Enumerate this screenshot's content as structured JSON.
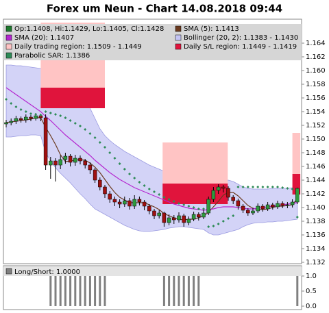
{
  "chart_data": [
    {
      "type": "candlestick",
      "title": "Forex um Neun - Chart 14.08.2018 09:44",
      "ylim": [
        1.1318,
        1.1675
      ],
      "yticks": [
        1.132,
        1.134,
        1.136,
        1.138,
        {
          "value": 1.14,
          "label": "1.140"
        },
        1.142,
        1.144,
        1.146,
        1.148,
        {
          "value": 1.15,
          "label": "1.150"
        },
        1.152,
        1.154,
        1.156,
        1.158,
        {
          "value": 1.16,
          "label": "1.160"
        },
        1.162,
        1.164
      ],
      "candles": {
        "name": "Op:1.1408, Hi:1.1429, Lo:1.1405, Cl:1.1428",
        "color": "#1e7a2e",
        "color_up": "#2e9a3e",
        "color_down": "#a01010",
        "open": [
          1.1522,
          1.1524,
          1.1526,
          1.153,
          1.1528,
          1.1532,
          1.153,
          1.1534,
          1.1531,
          1.1462,
          1.1468,
          1.1462,
          1.147,
          1.1475,
          1.1466,
          1.1472,
          1.1468,
          1.1462,
          1.1455,
          1.144,
          1.143,
          1.142,
          1.1412,
          1.1408,
          1.1405,
          1.141,
          1.1402,
          1.1412,
          1.1408,
          1.1402,
          1.1395,
          1.1388,
          1.1392,
          1.1378,
          1.1385,
          1.1382,
          1.1388,
          1.1378,
          1.1383,
          1.139,
          1.1386,
          1.1392,
          1.1412,
          1.1425,
          1.143,
          1.1428,
          1.1415,
          1.141,
          1.1402,
          1.1396,
          1.1392,
          1.1395,
          1.1402,
          1.1398,
          1.1404,
          1.1401,
          1.1406,
          1.1403,
          1.1404,
          1.1408
        ],
        "high": [
          1.1528,
          1.153,
          1.1534,
          1.1533,
          1.1536,
          1.1535,
          1.1538,
          1.1537,
          1.1536,
          1.1474,
          1.1472,
          1.1476,
          1.148,
          1.1478,
          1.1477,
          1.1476,
          1.1471,
          1.1466,
          1.1458,
          1.1444,
          1.1433,
          1.1424,
          1.1416,
          1.1412,
          1.1416,
          1.1414,
          1.1418,
          1.1416,
          1.1411,
          1.1405,
          1.1398,
          1.1396,
          1.1394,
          1.139,
          1.1389,
          1.1393,
          1.1391,
          1.1387,
          1.1394,
          1.1393,
          1.1397,
          1.1416,
          1.143,
          1.1434,
          1.1433,
          1.1431,
          1.1418,
          1.1413,
          1.1405,
          1.1399,
          1.1399,
          1.1406,
          1.1405,
          1.1408,
          1.1407,
          1.141,
          1.1409,
          1.1408,
          1.1412,
          1.1429
        ],
        "low": [
          1.1517,
          1.152,
          1.1522,
          1.1524,
          1.1524,
          1.1526,
          1.1527,
          1.1526,
          1.1455,
          1.1442,
          1.1438,
          1.1456,
          1.1464,
          1.146,
          1.1461,
          1.1463,
          1.1457,
          1.1449,
          1.1436,
          1.1425,
          1.1414,
          1.1407,
          1.1402,
          1.1399,
          1.1401,
          1.1397,
          1.1398,
          1.1403,
          1.1396,
          1.139,
          1.1383,
          1.1384,
          1.1372,
          1.1374,
          1.1376,
          1.1378,
          1.1372,
          1.1374,
          1.138,
          1.1381,
          1.1383,
          1.1389,
          1.1408,
          1.142,
          1.1422,
          1.141,
          1.1405,
          1.1397,
          1.1392,
          1.1388,
          1.1389,
          1.1392,
          1.1394,
          1.1395,
          1.1397,
          1.1398,
          1.1399,
          1.1399,
          1.14,
          1.1405
        ],
        "close": [
          1.1524,
          1.1526,
          1.153,
          1.1528,
          1.1532,
          1.153,
          1.1534,
          1.1531,
          1.1462,
          1.1468,
          1.1462,
          1.147,
          1.1475,
          1.1466,
          1.1472,
          1.1468,
          1.1462,
          1.1455,
          1.144,
          1.143,
          1.142,
          1.1412,
          1.1408,
          1.1405,
          1.141,
          1.1402,
          1.1412,
          1.1408,
          1.1402,
          1.1395,
          1.1388,
          1.1392,
          1.1378,
          1.1385,
          1.1382,
          1.1388,
          1.1378,
          1.1383,
          1.139,
          1.1386,
          1.1392,
          1.1412,
          1.1425,
          1.143,
          1.1428,
          1.1415,
          1.141,
          1.1402,
          1.1396,
          1.1392,
          1.1395,
          1.1402,
          1.1398,
          1.1404,
          1.1401,
          1.1406,
          1.1403,
          1.1404,
          1.1408,
          1.1428
        ]
      },
      "bands": [
        {
          "name": "Bollinger (20, 2): 1.1383 - 1.1430",
          "color": "#c4c4f4",
          "upper": [
            1.1608,
            1.1608,
            1.1607,
            1.1607,
            1.1606,
            1.1605,
            1.1604,
            1.1603,
            1.1605,
            1.1604,
            1.16,
            1.1595,
            1.1588,
            1.1582,
            1.1576,
            1.1568,
            1.1558,
            1.1545,
            1.153,
            1.1515,
            1.1505,
            1.1498,
            1.1492,
            1.1487,
            1.1482,
            1.1478,
            1.1474,
            1.147,
            1.1466,
            1.1462,
            1.1459,
            1.1456,
            1.1453,
            1.145,
            1.1447,
            1.1445,
            1.1443,
            1.1441,
            1.144,
            1.1438,
            1.1436,
            1.1435,
            1.1437,
            1.1439,
            1.144,
            1.144,
            1.1438,
            1.1434,
            1.143,
            1.1428,
            1.1427,
            1.1427,
            1.1427,
            1.1427,
            1.1428,
            1.1428,
            1.1428,
            1.1428,
            1.1429,
            1.143
          ],
          "lower": [
            1.1503,
            1.1503,
            1.1504,
            1.1505,
            1.1505,
            1.1506,
            1.1506,
            1.1505,
            1.148,
            1.1468,
            1.1458,
            1.145,
            1.1443,
            1.1436,
            1.1428,
            1.142,
            1.1413,
            1.1405,
            1.1398,
            1.1394,
            1.139,
            1.1386,
            1.1382,
            1.1378,
            1.1374,
            1.1371,
            1.1368,
            1.1366,
            1.1365,
            1.1365,
            1.1366,
            1.1367,
            1.1368,
            1.137,
            1.1371,
            1.1372,
            1.1372,
            1.1371,
            1.137,
            1.1369,
            1.1368,
            1.1363,
            1.136,
            1.136,
            1.1362,
            1.1364,
            1.1366,
            1.1368,
            1.1372,
            1.1375,
            1.1377,
            1.1378,
            1.1378,
            1.1379,
            1.1379,
            1.138,
            1.138,
            1.1381,
            1.1382,
            1.1383
          ]
        }
      ],
      "regions": [
        {
          "name": "Daily trading region: 1.1509 - 1.1449",
          "color": "#ffc4c4",
          "blocks": [
            {
              "from": 7,
              "to": 20,
              "high": 1.167,
              "low": 1.1575
            },
            {
              "from": 31.7,
              "to": 44.9,
              "high": 1.1495,
              "low": 1.1435
            },
            {
              "from": 58,
              "to": 59.6,
              "high": 1.1509,
              "low": 1.1449
            }
          ]
        },
        {
          "name": "Daily S/L region: 1.1449 - 1.1419",
          "color": "#e0143c",
          "blocks": [
            {
              "from": 7,
              "to": 20,
              "high": 1.1575,
              "low": 1.1545
            },
            {
              "from": 31.7,
              "to": 44.9,
              "high": 1.1435,
              "low": 1.1405
            },
            {
              "from": 58,
              "to": 59.6,
              "high": 1.1449,
              "low": 1.1419
            }
          ]
        }
      ],
      "series": [
        {
          "name": "SMA (5): 1.1413",
          "color": "#6b3a1e",
          "style": "line",
          "values": [
            1.1524,
            1.1525,
            1.1526,
            1.1527,
            1.1528,
            1.1529,
            1.1531,
            1.1531,
            1.1517,
            1.1505,
            1.1492,
            1.1477,
            1.1467,
            1.1468,
            1.1469,
            1.147,
            1.1469,
            1.1465,
            1.1459,
            1.1451,
            1.1441,
            1.1431,
            1.1422,
            1.1415,
            1.1411,
            1.1407,
            1.1407,
            1.1407,
            1.1407,
            1.1404,
            1.1401,
            1.1397,
            1.1391,
            1.1388,
            1.1385,
            1.1383,
            1.1382,
            1.1383,
            1.1383,
            1.1385,
            1.1388,
            1.1393,
            1.1401,
            1.1409,
            1.1418,
            1.1422,
            1.1422,
            1.1417,
            1.141,
            1.1403,
            1.1399,
            1.1397,
            1.1397,
            1.1398,
            1.14,
            1.1402,
            1.1402,
            1.1403,
            1.1404,
            1.1413
          ]
        },
        {
          "name": "SMA (20): 1.1407",
          "color": "#b428d0",
          "style": "line",
          "values": [
            1.1575,
            1.157,
            1.1565,
            1.156,
            1.1555,
            1.155,
            1.1545,
            1.154,
            1.1533,
            1.1527,
            1.152,
            1.1513,
            1.1506,
            1.15,
            1.1494,
            1.1488,
            1.1482,
            1.1476,
            1.1469,
            1.1463,
            1.1457,
            1.1451,
            1.1446,
            1.1441,
            1.1437,
            1.1433,
            1.1429,
            1.1426,
            1.1423,
            1.142,
            1.1417,
            1.1414,
            1.1411,
            1.1408,
            1.1405,
            1.1403,
            1.1401,
            1.1399,
            1.1398,
            1.1397,
            1.1396,
            1.1397,
            1.1398,
            1.14,
            1.1401,
            1.1401,
            1.1401,
            1.14,
            1.1399,
            1.1398,
            1.1398,
            1.1399,
            1.14,
            1.1401,
            1.1402,
            1.1403,
            1.1404,
            1.1405,
            1.1406,
            1.1407
          ]
        },
        {
          "name": "Parabolic SAR: 1.1386",
          "color": "#2e8b57",
          "style": "dots",
          "values": [
            1.1558,
            1.1552,
            1.1547,
            1.1543,
            1.154,
            1.1537,
            1.1536,
            1.1535,
            1.154,
            1.1538,
            1.1536,
            1.1534,
            1.1531,
            1.1527,
            1.1523,
            1.1519,
            1.1514,
            1.1508,
            1.1502,
            1.1495,
            1.1488,
            1.148,
            1.1472,
            1.1464,
            1.1456,
            1.1449,
            1.1443,
            1.1437,
            1.1432,
            1.1427,
            1.1423,
            1.1419,
            1.1415,
            1.1412,
            1.1409,
            1.1406,
            1.1404,
            1.1402,
            1.14,
            1.1398,
            1.1398,
            1.1372,
            1.1373,
            1.1376,
            1.138,
            1.1384,
            1.1388,
            1.143,
            1.143,
            1.143,
            1.143,
            1.143,
            1.143,
            1.143,
            1.143,
            1.143,
            1.1429,
            1.1428,
            1.1427,
            1.1386
          ]
        }
      ]
    },
    {
      "type": "bar",
      "title": "Long/Short: 1.0000",
      "color": "#808080",
      "ylim": [
        0,
        1.25
      ],
      "yticks": [
        {
          "value": 0,
          "label": "0.0"
        },
        0.5,
        {
          "value": 1,
          "label": "1.0"
        }
      ],
      "values": [
        0,
        0,
        0,
        0,
        0,
        0,
        0,
        0,
        0,
        1,
        1,
        1,
        1,
        1,
        1,
        1,
        1,
        1,
        1,
        1,
        1,
        0,
        0,
        0,
        0,
        0,
        0,
        0,
        0,
        0,
        0,
        0,
        1,
        1,
        1,
        1,
        1,
        1,
        1,
        1,
        0,
        0,
        0,
        0,
        0,
        0,
        0,
        0,
        0,
        0,
        0,
        0,
        0,
        0,
        0,
        0,
        0,
        0,
        0,
        1
      ]
    }
  ]
}
